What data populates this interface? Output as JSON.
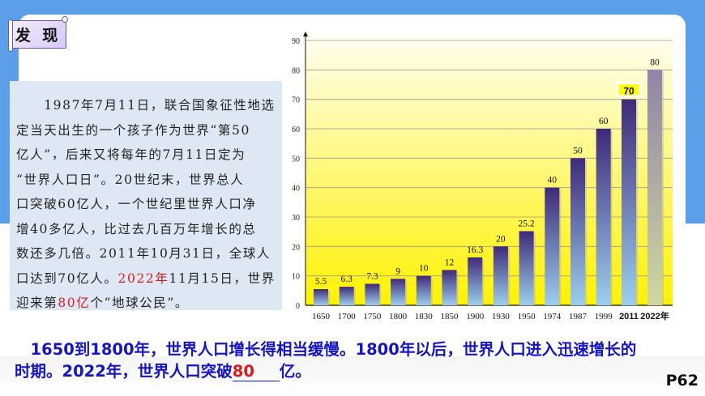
{
  "badge": {
    "label": "发 现"
  },
  "passage": {
    "lines": [
      [
        {
          "t": "　　1987年7月11日，联合国象征性地选"
        }
      ],
      [
        {
          "t": "定当天出生的一个孩子作为世界“第50"
        }
      ],
      [
        {
          "t": "亿人”，后来又将每年的7月11日定为"
        }
      ],
      [
        {
          "t": "“世界人口日”。20世纪末，世界总人"
        }
      ],
      [
        {
          "t": "口突破60亿人，一个世纪里世界人口净"
        }
      ],
      [
        {
          "t": "增40多亿人，比过去几百万年增长的总"
        }
      ],
      [
        {
          "t": "数还多几倍。2011年10月31日，全球人"
        }
      ],
      [
        {
          "t": "口达到70亿人。"
        },
        {
          "t": "2022年",
          "red": true
        },
        {
          "t": "11月15日，世界"
        }
      ],
      [
        {
          "t": "迎来第"
        },
        {
          "t": "80亿",
          "red": true
        },
        {
          "t": "个“地球公民”。"
        }
      ]
    ]
  },
  "chart_data": {
    "type": "bar",
    "categories": [
      "1650",
      "1700",
      "1750",
      "1800",
      "1830",
      "1850",
      "1900",
      "1930",
      "1950",
      "1974",
      "1987",
      "1999",
      "2011",
      "2022年"
    ],
    "values": [
      5.5,
      6.3,
      7.3,
      9,
      10,
      12,
      16.3,
      20,
      25.2,
      40,
      50,
      60,
      70,
      80
    ],
    "data_labels": [
      "5.5",
      "6.3",
      "7.3",
      "9",
      "10",
      "12",
      "16.3",
      "20",
      "25.2",
      "40",
      "50",
      "60",
      "70",
      "80"
    ],
    "highlighted_label": "70",
    "yticks": [
      "0",
      "10",
      "20",
      "30",
      "40",
      "50",
      "60",
      "70",
      "80",
      "90"
    ],
    "ylim": [
      0,
      90
    ],
    "grid": true,
    "colors": {
      "bar_top": "#3f2a7a",
      "bar_bottom": "#9ccfee",
      "last_bar_top": "#8f84a8",
      "last_bar_bottom": "#cfd8a0",
      "bg_top": "#fffdf0",
      "bg_bottom": "#fff200",
      "highlight": "#ffff00"
    }
  },
  "summary": {
    "line1": "　1650到1800年，世界人口增长得相当缓慢。1800年以后，世界人口进入迅速增长的",
    "line2_a": "时期。2022年，世界人口突破",
    "answer": "80",
    "line2_b": "亿。"
  },
  "page_number": "P62"
}
